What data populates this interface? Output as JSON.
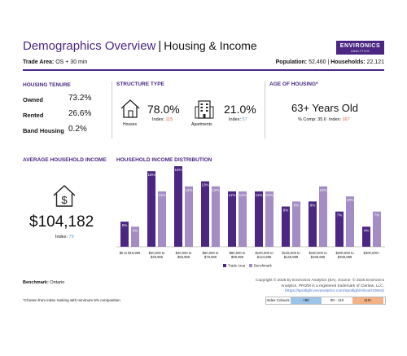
{
  "header": {
    "title": "Demographics Overview",
    "separator": "|",
    "subtitle": "Housing & Income",
    "logo_name": "ENVIRONICS",
    "logo_sub": "ANALYTICS",
    "trade_area_label": "Trade Area:",
    "trade_area_value": "OS + 30 min",
    "population_label": "Population:",
    "population_value": "52,460",
    "households_label": "Households:",
    "households_value": "22,121",
    "bar_sep": "|"
  },
  "tenure": {
    "title": "HOUSING TENURE",
    "rows": [
      {
        "label": "Owned",
        "value": "73.2%"
      },
      {
        "label": "Rented",
        "value": "26.6%"
      },
      {
        "label": "Band Housing",
        "value": "0.2%"
      }
    ]
  },
  "structure": {
    "title": "STRUCTURE TYPE",
    "houses_label": "Houses",
    "houses_pct": "78.0%",
    "houses_index_label": "Index:",
    "houses_index": "115",
    "apts_label": "Apartments",
    "apts_pct": "21.0%",
    "apts_index_label": "Index:",
    "apts_index": "57"
  },
  "age": {
    "title": "AGE OF HOUSING*",
    "value": "63+ Years Old",
    "comp_label": "% Comp:",
    "comp_value": "35.6",
    "index_label": "Index:",
    "index_value": "167"
  },
  "avg_income": {
    "title": "AVERAGE HOUSEHOLD INCOME",
    "value": "$104,182",
    "index_label": "Index:",
    "index_value": "79"
  },
  "dist": {
    "title": "HOUSEHOLD INCOME DISTRIBUTION"
  },
  "chart_data": {
    "type": "bar",
    "title": "HOUSEHOLD INCOME DISTRIBUTION",
    "categories": [
      [
        "$0 to $19,999"
      ],
      [
        "$20,000 to",
        "$39,999"
      ],
      [
        "$40,000 to",
        "$59,999"
      ],
      [
        "$60,000 to",
        "$79,999"
      ],
      [
        "$80,000 to",
        "$99,999"
      ],
      [
        "$100,000 to",
        "$124,999"
      ],
      [
        "$125,000 to",
        "$149,999"
      ],
      [
        "$150,000 to",
        "$199,999"
      ],
      [
        "$200,000 to",
        "$299,999"
      ],
      [
        "$300,000+"
      ]
    ],
    "series": [
      {
        "name": "Trade Area",
        "color": "#4b2683",
        "values": [
          5,
          15,
          16,
          13,
          11,
          11,
          8,
          9,
          7,
          4
        ]
      },
      {
        "name": "Benchmark",
        "color": "#a48cc4",
        "values": [
          4,
          11,
          12,
          12,
          11,
          11,
          9,
          12,
          10,
          7
        ]
      }
    ],
    "value_suffix": "%",
    "ylim": [
      0,
      16
    ]
  },
  "footer": {
    "benchmark_label": "Benchmark:",
    "benchmark_value": "Ontario",
    "copyright_1": "Copyright © 2025 by Environics Analytics (EA). Source: © 2025 Environics",
    "copyright_2": "Analytics. PRIZM is a registered trademark of Claritas, LLC.",
    "copyright_3": "(https://spotlight.envanalytics.com/Spotlight/About/10504)",
    "note": "*Chosen from index ranking with minimum 5% composition",
    "legend_title": "Index Colours:",
    "legend": [
      {
        "label": "<80",
        "color": "#9dc3e6"
      },
      {
        "label": "80 - 110",
        "color": "#ffffff"
      },
      {
        "label": "110+",
        "color": "#f4b183"
      }
    ]
  }
}
